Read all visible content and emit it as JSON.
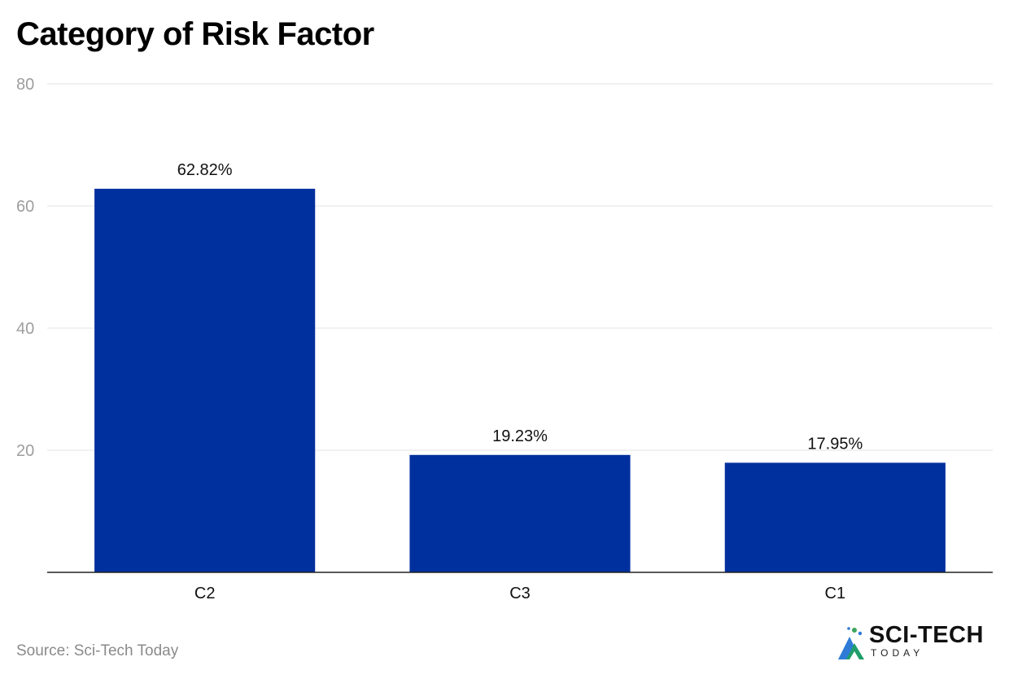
{
  "chart_data": {
    "type": "bar",
    "title": "Category of Risk Factor",
    "categories": [
      "C2",
      "C3",
      "C1"
    ],
    "values": [
      62.82,
      19.23,
      17.95
    ],
    "data_labels": [
      "62.82%",
      "19.23%",
      "17.95%"
    ],
    "ylim": [
      0,
      80
    ],
    "yticks": [
      20,
      40,
      60,
      80
    ],
    "xlabel": "",
    "ylabel": "",
    "grid": true,
    "bar_color": "#002f9e"
  },
  "footer": {
    "source": "Source: Sci-Tech Today"
  },
  "logo": {
    "main_text": "SCI-TECH",
    "sub_text": "TODAY",
    "icon": "sci-tech-mountain-logo-icon"
  },
  "colors": {
    "bar": "#002f9e",
    "grid": "#e3e3e3",
    "tick_label": "#9e9e9e",
    "baseline": "#222222"
  }
}
